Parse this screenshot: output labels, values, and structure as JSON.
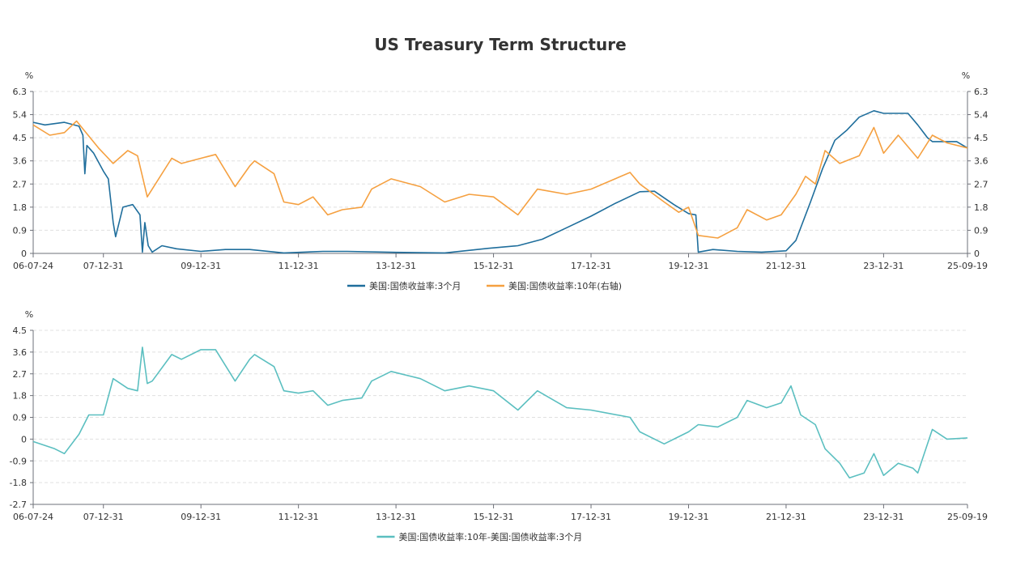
{
  "title": "US Treasury Term Structure",
  "chart_data": [
    {
      "type": "line",
      "unit_left": "%",
      "unit_right": "%",
      "x_range": [
        2006.56,
        2025.72
      ],
      "x_ticks": [
        {
          "label": "06-07-24",
          "x": 2006.56
        },
        {
          "label": "07-12-31",
          "x": 2008.0
        },
        {
          "label": "09-12-31",
          "x": 2010.0
        },
        {
          "label": "11-12-31",
          "x": 2012.0
        },
        {
          "label": "13-12-31",
          "x": 2014.0
        },
        {
          "label": "15-12-31",
          "x": 2016.0
        },
        {
          "label": "17-12-31",
          "x": 2018.0
        },
        {
          "label": "19-12-31",
          "x": 2020.0
        },
        {
          "label": "21-12-31",
          "x": 2022.0
        },
        {
          "label": "23-12-31",
          "x": 2024.0
        },
        {
          "label": "25-09-19",
          "x": 2025.72
        }
      ],
      "ylim": [
        0,
        6.3
      ],
      "y_ticks": [
        "0",
        "0.9",
        "1.8",
        "2.7",
        "3.6",
        "4.5",
        "5.4",
        "6.3"
      ],
      "grid": true,
      "legend_position": "bottom",
      "series": [
        {
          "name": "美国:国债收益率:3个月",
          "color": "#1f6e9c",
          "axis": "left",
          "points": [
            [
              2006.56,
              5.1
            ],
            [
              2006.8,
              5.0
            ],
            [
              2007.0,
              5.05
            ],
            [
              2007.2,
              5.1
            ],
            [
              2007.5,
              4.95
            ],
            [
              2007.58,
              4.6
            ],
            [
              2007.62,
              3.1
            ],
            [
              2007.66,
              4.2
            ],
            [
              2007.8,
              3.9
            ],
            [
              2008.0,
              3.2
            ],
            [
              2008.1,
              2.9
            ],
            [
              2008.2,
              1.2
            ],
            [
              2008.25,
              0.65
            ],
            [
              2008.4,
              1.8
            ],
            [
              2008.6,
              1.9
            ],
            [
              2008.75,
              1.5
            ],
            [
              2008.8,
              0.05
            ],
            [
              2008.85,
              1.2
            ],
            [
              2008.92,
              0.3
            ],
            [
              2009.0,
              0.05
            ],
            [
              2009.2,
              0.3
            ],
            [
              2009.5,
              0.18
            ],
            [
              2010.0,
              0.08
            ],
            [
              2010.5,
              0.15
            ],
            [
              2011.0,
              0.15
            ],
            [
              2011.7,
              0.02
            ],
            [
              2012.5,
              0.08
            ],
            [
              2013.0,
              0.08
            ],
            [
              2014.0,
              0.04
            ],
            [
              2015.0,
              0.02
            ],
            [
              2015.9,
              0.2
            ],
            [
              2016.5,
              0.3
            ],
            [
              2017.0,
              0.55
            ],
            [
              2017.5,
              1.0
            ],
            [
              2018.0,
              1.45
            ],
            [
              2018.5,
              1.95
            ],
            [
              2019.0,
              2.4
            ],
            [
              2019.3,
              2.42
            ],
            [
              2019.7,
              1.9
            ],
            [
              2020.0,
              1.55
            ],
            [
              2020.15,
              1.5
            ],
            [
              2020.2,
              0.05
            ],
            [
              2020.5,
              0.15
            ],
            [
              2021.0,
              0.08
            ],
            [
              2021.5,
              0.05
            ],
            [
              2022.0,
              0.1
            ],
            [
              2022.2,
              0.5
            ],
            [
              2022.5,
              2.0
            ],
            [
              2022.75,
              3.3
            ],
            [
              2023.0,
              4.4
            ],
            [
              2023.25,
              4.8
            ],
            [
              2023.5,
              5.3
            ],
            [
              2023.8,
              5.55
            ],
            [
              2024.0,
              5.45
            ],
            [
              2024.5,
              5.45
            ],
            [
              2024.7,
              5.0
            ],
            [
              2024.9,
              4.5
            ],
            [
              2025.0,
              4.35
            ],
            [
              2025.5,
              4.35
            ],
            [
              2025.72,
              4.1
            ]
          ]
        },
        {
          "name": "美国:国债收益率:10年(右轴)",
          "color": "#f5a040",
          "axis": "right",
          "points": [
            [
              2006.56,
              5.0
            ],
            [
              2006.9,
              4.6
            ],
            [
              2007.2,
              4.7
            ],
            [
              2007.45,
              5.15
            ],
            [
              2007.6,
              4.8
            ],
            [
              2007.9,
              4.1
            ],
            [
              2008.2,
              3.5
            ],
            [
              2008.5,
              4.0
            ],
            [
              2008.7,
              3.8
            ],
            [
              2008.9,
              2.2
            ],
            [
              2009.0,
              2.5
            ],
            [
              2009.4,
              3.7
            ],
            [
              2009.6,
              3.5
            ],
            [
              2010.0,
              3.7
            ],
            [
              2010.3,
              3.85
            ],
            [
              2010.7,
              2.6
            ],
            [
              2011.0,
              3.4
            ],
            [
              2011.1,
              3.6
            ],
            [
              2011.5,
              3.1
            ],
            [
              2011.7,
              2.0
            ],
            [
              2012.0,
              1.9
            ],
            [
              2012.3,
              2.2
            ],
            [
              2012.6,
              1.5
            ],
            [
              2012.9,
              1.7
            ],
            [
              2013.3,
              1.8
            ],
            [
              2013.5,
              2.5
            ],
            [
              2013.9,
              2.9
            ],
            [
              2014.5,
              2.6
            ],
            [
              2015.0,
              2.0
            ],
            [
              2015.5,
              2.3
            ],
            [
              2016.0,
              2.2
            ],
            [
              2016.5,
              1.5
            ],
            [
              2016.9,
              2.5
            ],
            [
              2017.5,
              2.3
            ],
            [
              2018.0,
              2.5
            ],
            [
              2018.8,
              3.15
            ],
            [
              2019.0,
              2.7
            ],
            [
              2019.5,
              2.0
            ],
            [
              2019.8,
              1.6
            ],
            [
              2020.0,
              1.8
            ],
            [
              2020.2,
              0.7
            ],
            [
              2020.6,
              0.6
            ],
            [
              2021.0,
              1.0
            ],
            [
              2021.2,
              1.7
            ],
            [
              2021.6,
              1.3
            ],
            [
              2021.9,
              1.5
            ],
            [
              2022.2,
              2.3
            ],
            [
              2022.4,
              3.0
            ],
            [
              2022.6,
              2.7
            ],
            [
              2022.8,
              4.0
            ],
            [
              2023.1,
              3.5
            ],
            [
              2023.5,
              3.8
            ],
            [
              2023.8,
              4.9
            ],
            [
              2024.0,
              3.9
            ],
            [
              2024.3,
              4.6
            ],
            [
              2024.7,
              3.7
            ],
            [
              2025.0,
              4.6
            ],
            [
              2025.3,
              4.3
            ],
            [
              2025.72,
              4.1
            ]
          ]
        }
      ]
    },
    {
      "type": "line",
      "unit_left": "%",
      "x_range": [
        2006.56,
        2025.72
      ],
      "x_ticks": [
        {
          "label": "06-07-24",
          "x": 2006.56
        },
        {
          "label": "07-12-31",
          "x": 2008.0
        },
        {
          "label": "09-12-31",
          "x": 2010.0
        },
        {
          "label": "11-12-31",
          "x": 2012.0
        },
        {
          "label": "13-12-31",
          "x": 2014.0
        },
        {
          "label": "15-12-31",
          "x": 2016.0
        },
        {
          "label": "17-12-31",
          "x": 2018.0
        },
        {
          "label": "19-12-31",
          "x": 2020.0
        },
        {
          "label": "21-12-31",
          "x": 2022.0
        },
        {
          "label": "23-12-31",
          "x": 2024.0
        },
        {
          "label": "25-09-19",
          "x": 2025.72
        }
      ],
      "ylim": [
        -2.7,
        4.5
      ],
      "y_ticks": [
        "-2.7",
        "-1.8",
        "-0.9",
        "0",
        "0.9",
        "1.8",
        "2.7",
        "3.6",
        "4.5"
      ],
      "grid": true,
      "legend_position": "bottom",
      "series": [
        {
          "name": "美国:国债收益率:10年-美国:国债收益率:3个月",
          "color": "#5bbfc0",
          "axis": "left",
          "points": [
            [
              2006.56,
              -0.1
            ],
            [
              2007.0,
              -0.4
            ],
            [
              2007.2,
              -0.6
            ],
            [
              2007.5,
              0.2
            ],
            [
              2007.7,
              1.0
            ],
            [
              2008.0,
              1.0
            ],
            [
              2008.2,
              2.5
            ],
            [
              2008.5,
              2.1
            ],
            [
              2008.7,
              2.0
            ],
            [
              2008.8,
              3.8
            ],
            [
              2008.9,
              2.3
            ],
            [
              2009.0,
              2.4
            ],
            [
              2009.4,
              3.5
            ],
            [
              2009.6,
              3.3
            ],
            [
              2010.0,
              3.7
            ],
            [
              2010.3,
              3.7
            ],
            [
              2010.7,
              2.4
            ],
            [
              2011.0,
              3.3
            ],
            [
              2011.1,
              3.5
            ],
            [
              2011.5,
              3.0
            ],
            [
              2011.7,
              2.0
            ],
            [
              2012.0,
              1.9
            ],
            [
              2012.3,
              2.0
            ],
            [
              2012.6,
              1.4
            ],
            [
              2012.9,
              1.6
            ],
            [
              2013.3,
              1.7
            ],
            [
              2013.5,
              2.4
            ],
            [
              2013.9,
              2.8
            ],
            [
              2014.5,
              2.5
            ],
            [
              2015.0,
              2.0
            ],
            [
              2015.5,
              2.2
            ],
            [
              2016.0,
              2.0
            ],
            [
              2016.5,
              1.2
            ],
            [
              2016.9,
              2.0
            ],
            [
              2017.5,
              1.3
            ],
            [
              2018.0,
              1.2
            ],
            [
              2018.8,
              0.9
            ],
            [
              2019.0,
              0.3
            ],
            [
              2019.5,
              -0.2
            ],
            [
              2019.8,
              0.1
            ],
            [
              2020.0,
              0.3
            ],
            [
              2020.2,
              0.6
            ],
            [
              2020.6,
              0.5
            ],
            [
              2021.0,
              0.9
            ],
            [
              2021.2,
              1.6
            ],
            [
              2021.6,
              1.3
            ],
            [
              2021.9,
              1.5
            ],
            [
              2022.1,
              2.2
            ],
            [
              2022.3,
              1.0
            ],
            [
              2022.6,
              0.6
            ],
            [
              2022.8,
              -0.4
            ],
            [
              2023.1,
              -1.0
            ],
            [
              2023.3,
              -1.6
            ],
            [
              2023.6,
              -1.4
            ],
            [
              2023.8,
              -0.6
            ],
            [
              2024.0,
              -1.5
            ],
            [
              2024.3,
              -1.0
            ],
            [
              2024.6,
              -1.2
            ],
            [
              2024.7,
              -1.4
            ],
            [
              2025.0,
              0.4
            ],
            [
              2025.3,
              0.0
            ],
            [
              2025.72,
              0.05
            ]
          ]
        }
      ]
    }
  ]
}
